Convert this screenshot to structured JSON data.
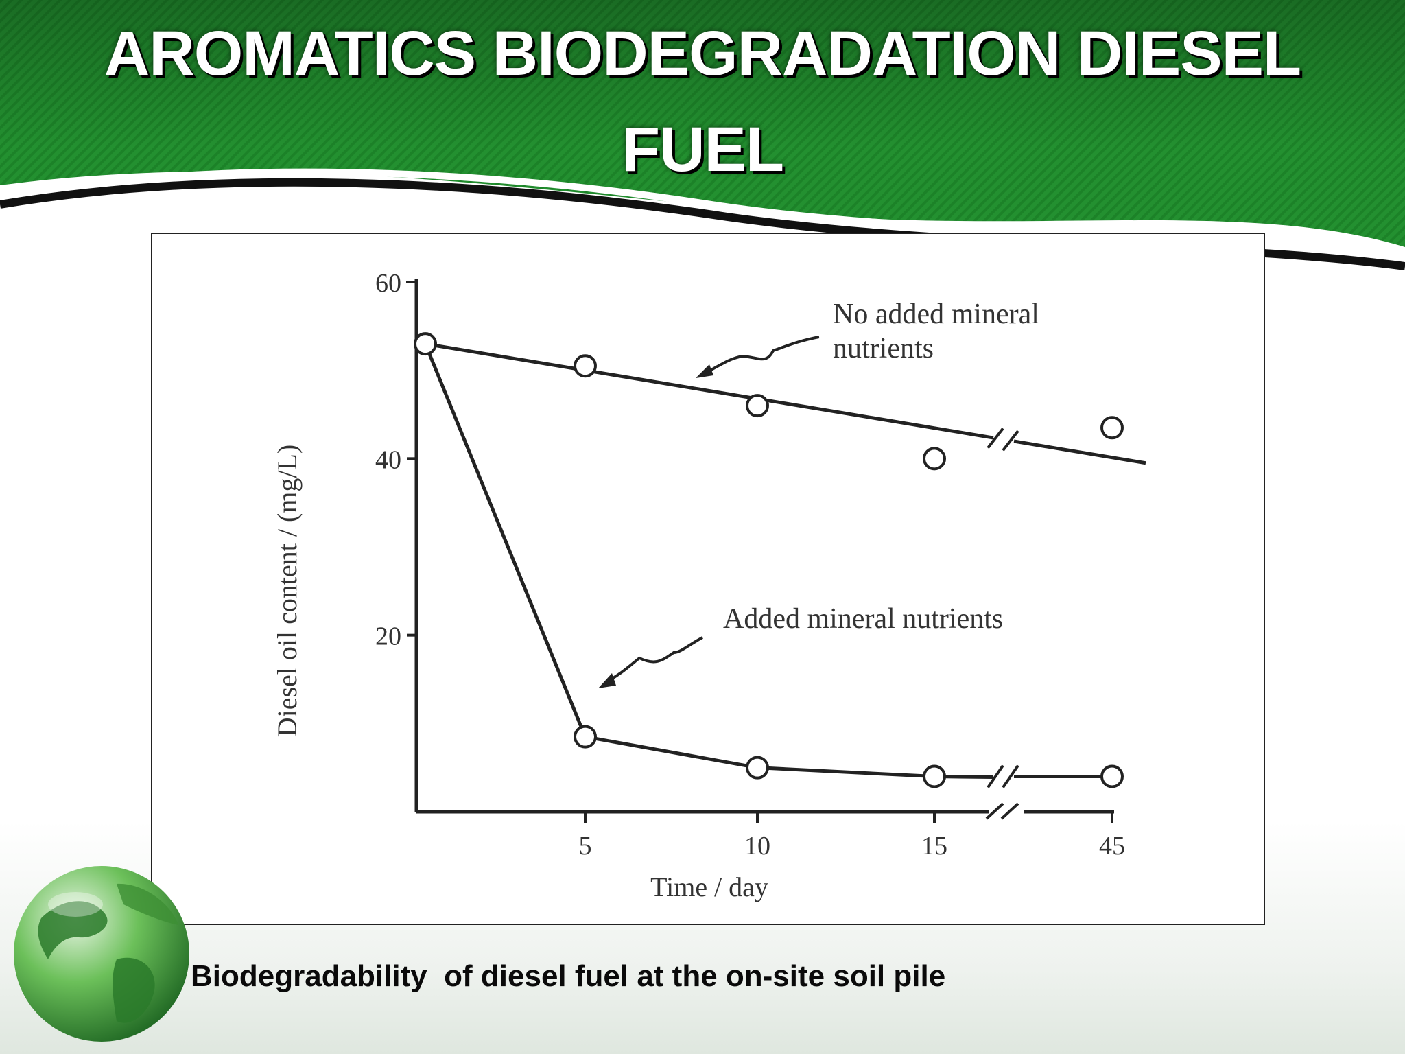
{
  "slide": {
    "title_line1": "AROMATICS BIODEGRADATION DIESEL",
    "title_line2": "FUEL",
    "caption": "Biodegradability  of diesel fuel at the on-site soil pile",
    "colors": {
      "banner_green": "#2a9a35",
      "banner_dark": "#107a20",
      "title_text": "#ffffff"
    },
    "icons": [
      "globe-icon"
    ]
  },
  "chart_data": {
    "type": "line",
    "title": "",
    "xlabel": "Time / day",
    "ylabel": "Diesel oil content / (mg/L)",
    "x_ticks": [
      "5",
      "10",
      "15",
      "45"
    ],
    "y_ticks": [
      "20",
      "40",
      "60"
    ],
    "ylim": [
      0,
      60
    ],
    "x_axis_break": "between 15 and 45",
    "series": [
      {
        "name": "No added mineral nutrients",
        "points": [
          {
            "x": 0,
            "y": 53
          },
          {
            "x": 5,
            "y": 50.5
          },
          {
            "x": 10,
            "y": 46
          },
          {
            "x": 15,
            "y": 40
          },
          {
            "x": 45,
            "y": 43.5
          }
        ],
        "fit_line": [
          {
            "x": 0,
            "y": 53
          },
          {
            "x": 45,
            "y": 39.5
          }
        ]
      },
      {
        "name": "Added mineral nutrients",
        "points": [
          {
            "x": 0,
            "y": 53
          },
          {
            "x": 5,
            "y": 8.5
          },
          {
            "x": 10,
            "y": 5
          },
          {
            "x": 15,
            "y": 4
          },
          {
            "x": 45,
            "y": 4
          }
        ]
      }
    ],
    "annotations": [
      {
        "lines": [
          "No added mineral",
          "nutrients"
        ],
        "points_to": "No added mineral nutrients"
      },
      {
        "lines": [
          "Added mineral nutrients"
        ],
        "points_to": "Added mineral nutrients"
      }
    ]
  }
}
